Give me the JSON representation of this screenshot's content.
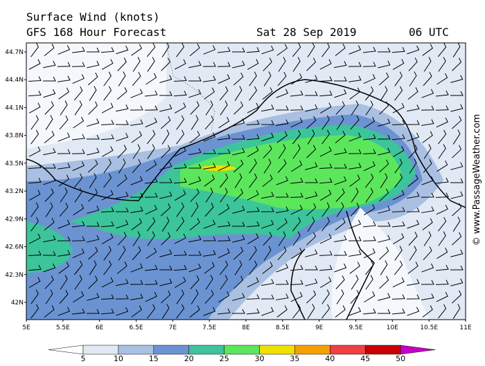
{
  "header": {
    "title": "Surface Wind (knots)",
    "subtitle": "GFS 168 Hour Forecast",
    "date": "Sat 28 Sep 2019",
    "time": "06 UTC"
  },
  "map": {
    "lat_labels": [
      "44.7N",
      "44.4N",
      "44.1N",
      "43.8N",
      "43.5N",
      "43.2N",
      "42.9N",
      "42.6N",
      "42.3N",
      "42N"
    ],
    "lon_labels": [
      "5E",
      "5.5E",
      "6E",
      "6.5E",
      "7E",
      "7.5E",
      "8E",
      "8.5E",
      "9E",
      "9.5E",
      "10E",
      "10.5E",
      "11E"
    ],
    "watermark": "© www.PassageWeather.com"
  },
  "legend": {
    "ticks": [
      "5",
      "10",
      "15",
      "20",
      "25",
      "30",
      "35",
      "40",
      "45",
      "50"
    ],
    "colors": [
      "#ffffff",
      "#e1e9f5",
      "#a9c0e3",
      "#6b93d2",
      "#3cc49a",
      "#5ce65c",
      "#f0e000",
      "#f5a000",
      "#f04040",
      "#c80000",
      "#c800c8"
    ]
  }
}
